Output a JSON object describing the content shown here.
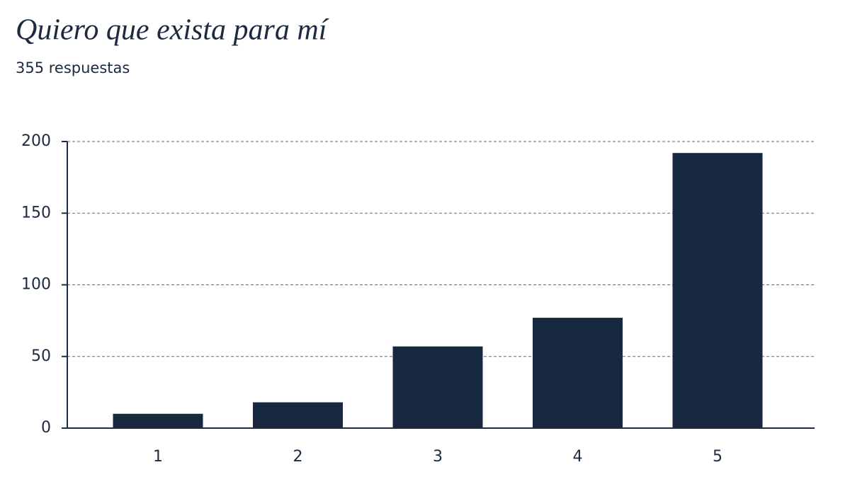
{
  "chart_data": {
    "type": "bar",
    "title": "Quiero que exista para mí",
    "subtitle": "355 respuestas",
    "categories": [
      "1",
      "2",
      "3",
      "4",
      "5"
    ],
    "values": [
      10,
      18,
      57,
      77,
      192
    ],
    "color": "#172840",
    "ylim": [
      0,
      200
    ],
    "yticks": [
      0,
      50,
      100,
      150,
      200
    ],
    "grid": true
  }
}
